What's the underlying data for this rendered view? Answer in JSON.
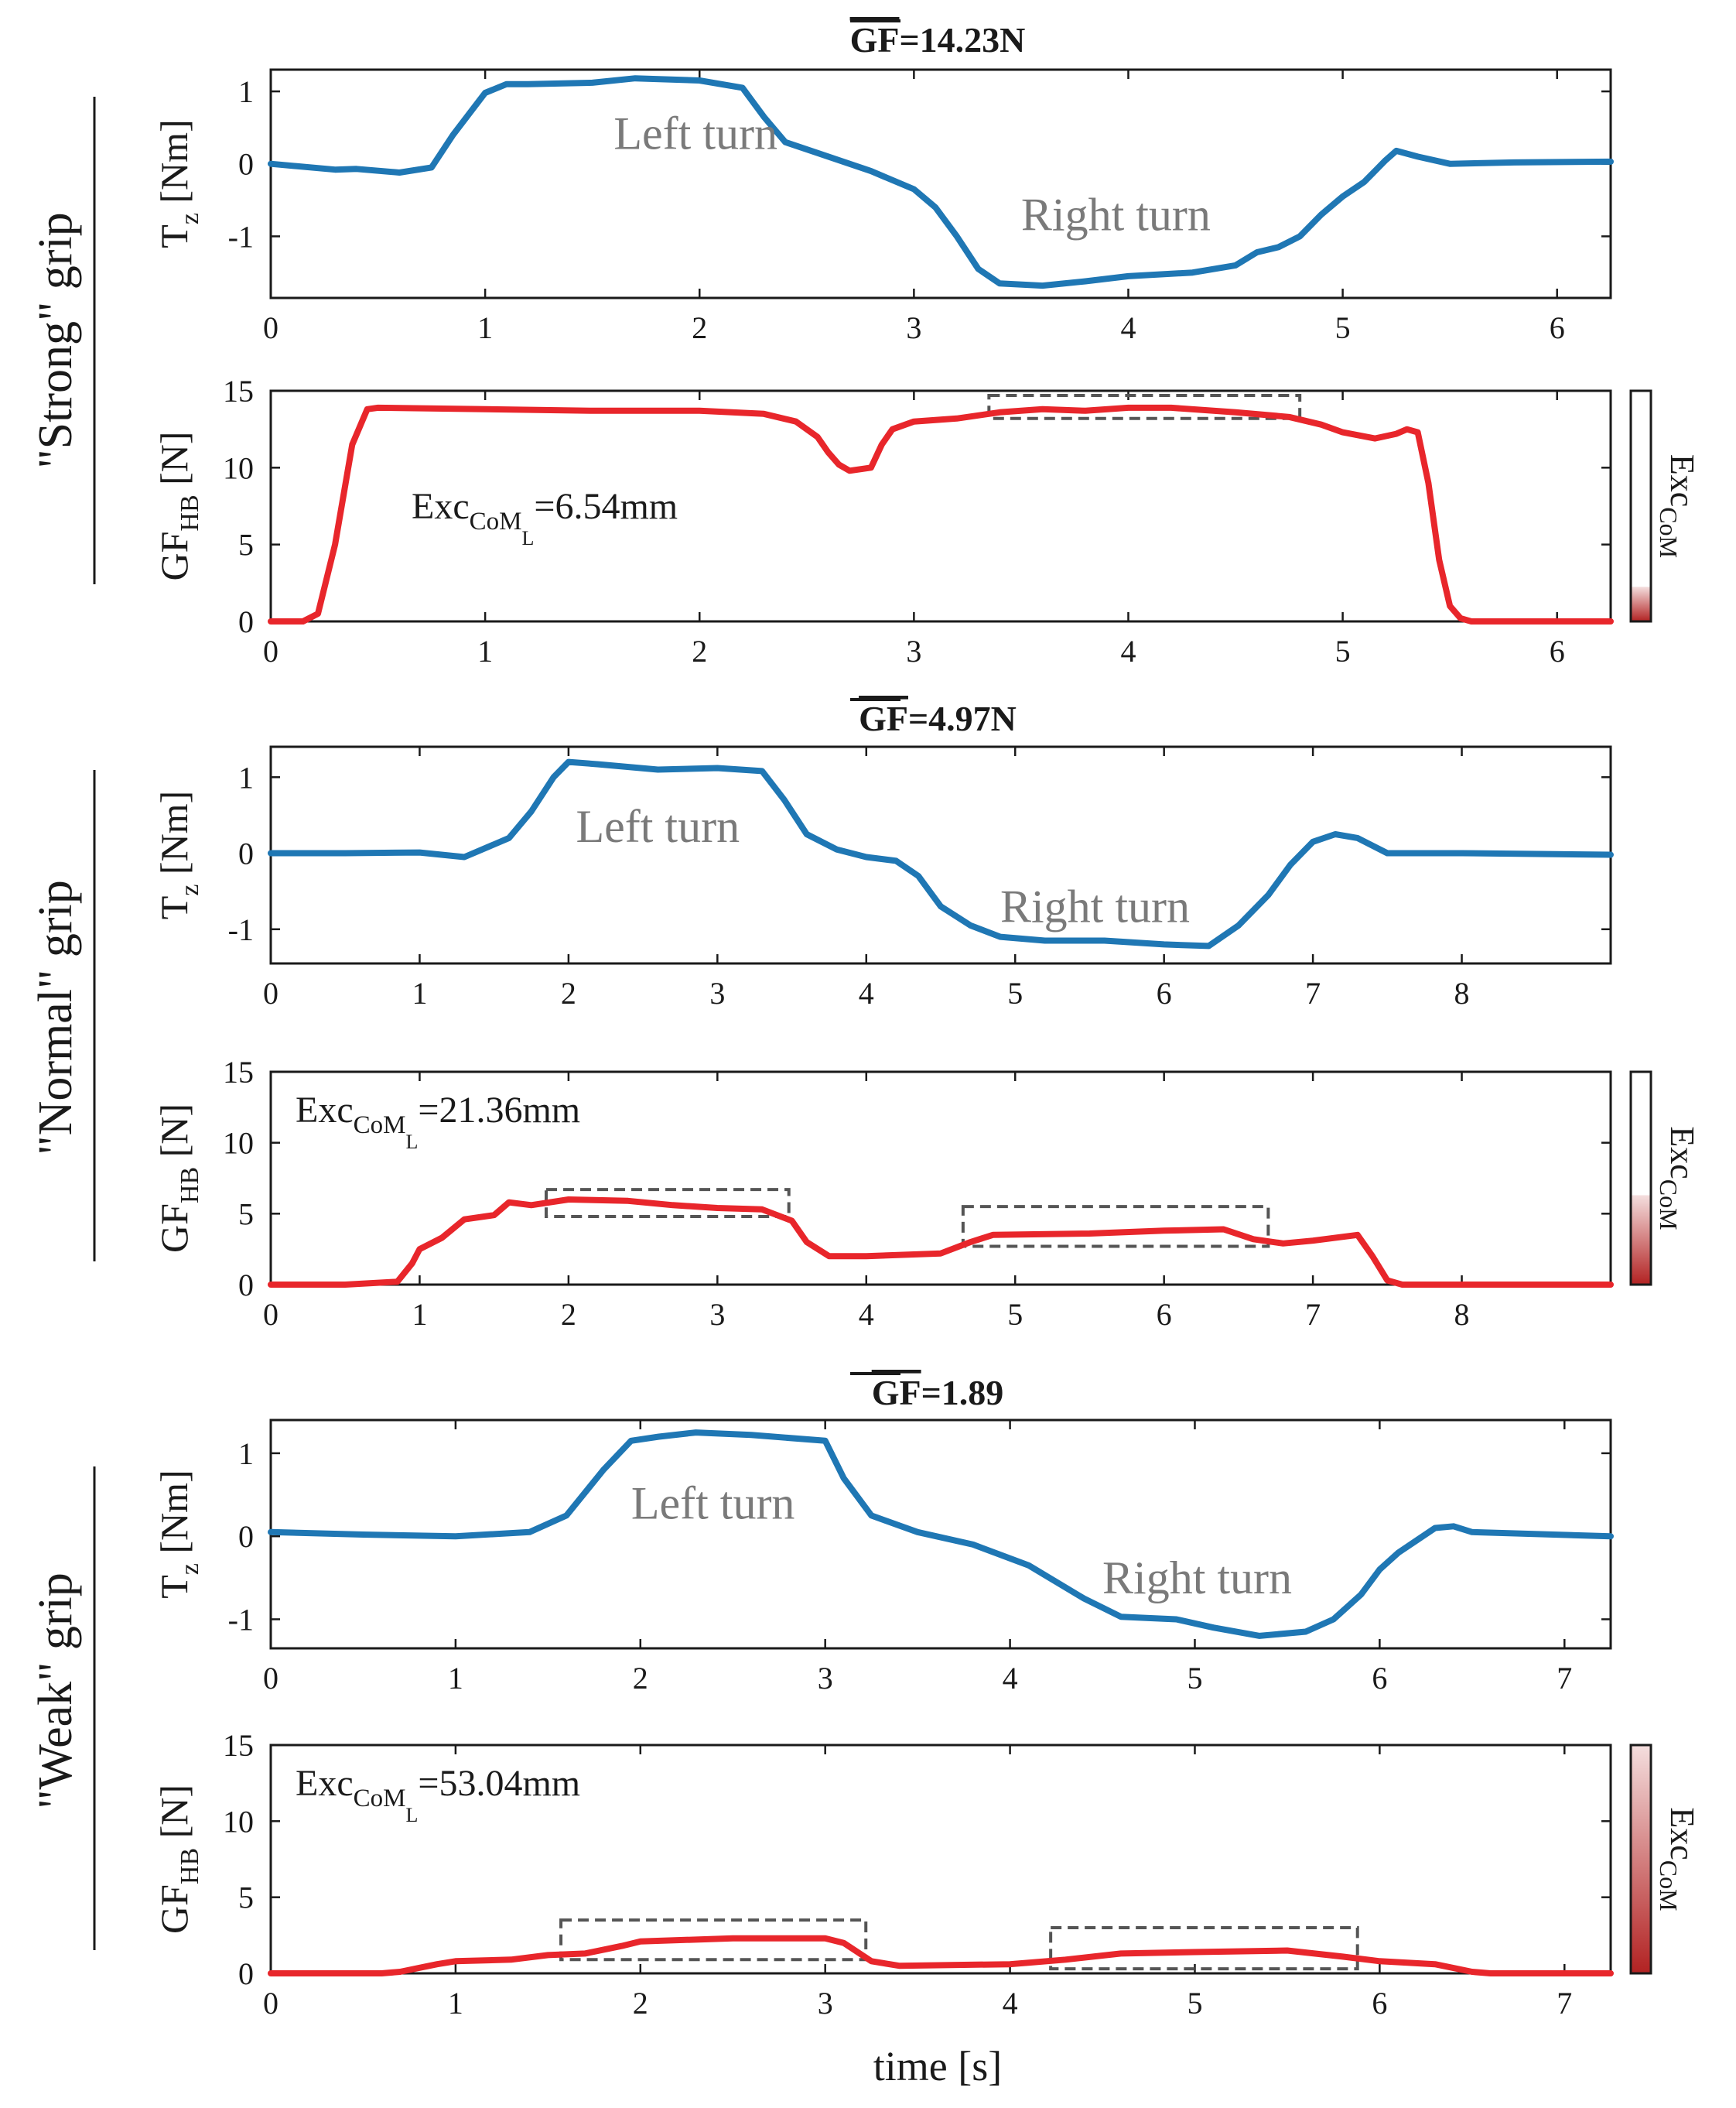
{
  "xlabel": "time [s]",
  "colors": {
    "torque": "#1f77b4",
    "grip_force": "#e8262b",
    "box": "#555555",
    "text_gray": "#7a7a7a",
    "exc_fill": "#b22222"
  },
  "chart_data": [
    {
      "id": "strong",
      "group_label": "\"Strong\" grip",
      "title_var": "GF",
      "title_value": "=14.23N",
      "exc_label": "Exc",
      "exc_sub": "CoM",
      "exc_sub2": "L",
      "exc_value": "=6.54mm",
      "exc_level": 0.15,
      "colorbar_label": "Exc",
      "colorbar_sub": "CoM",
      "torque": {
        "type": "line",
        "ylabel": "T",
        "ylabel_sub": "z",
        "ylabel_unit": " [Nm]",
        "xlim": [
          0,
          6.25
        ],
        "ylim": [
          -1.85,
          1.3
        ],
        "xticks": [
          0,
          1,
          2,
          3,
          4,
          5,
          6
        ],
        "yticks": [
          -1,
          0,
          1
        ],
        "annotations": [
          {
            "text": "Left turn",
            "x": 1.6,
            "y": 0.42
          },
          {
            "text": "Right turn",
            "x": 3.5,
            "y": -0.7
          }
        ],
        "x": [
          0,
          0.3,
          0.4,
          0.6,
          0.75,
          0.85,
          1.0,
          1.1,
          1.2,
          1.5,
          1.7,
          2.0,
          2.2,
          2.3,
          2.4,
          2.55,
          2.8,
          3.0,
          3.1,
          3.2,
          3.3,
          3.4,
          3.6,
          3.8,
          4.0,
          4.3,
          4.5,
          4.6,
          4.7,
          4.8,
          4.9,
          5.0,
          5.1,
          5.2,
          5.25,
          5.35,
          5.5,
          5.8,
          6.25
        ],
        "y": [
          0,
          -0.08,
          -0.07,
          -0.12,
          -0.05,
          0.4,
          0.98,
          1.1,
          1.1,
          1.12,
          1.18,
          1.15,
          1.05,
          0.65,
          0.3,
          0.15,
          -0.1,
          -0.35,
          -0.6,
          -1.0,
          -1.45,
          -1.65,
          -1.68,
          -1.62,
          -1.55,
          -1.5,
          -1.4,
          -1.22,
          -1.15,
          -1.0,
          -0.7,
          -0.45,
          -0.25,
          0.05,
          0.18,
          0.1,
          0.0,
          0.02,
          0.03
        ]
      },
      "grip": {
        "type": "line",
        "ylabel": "GF",
        "ylabel_sub": "HB",
        "ylabel_unit": " [N]",
        "xlim": [
          0,
          6.25
        ],
        "ylim": [
          0,
          15
        ],
        "xticks": [
          0,
          1,
          2,
          3,
          4,
          5,
          6
        ],
        "yticks": [
          0,
          5,
          10,
          15
        ],
        "boxes": [
          {
            "x0": 3.35,
            "x1": 4.8,
            "y0": 13.2,
            "y1": 14.7
          }
        ],
        "x": [
          0,
          0.15,
          0.22,
          0.3,
          0.38,
          0.45,
          0.5,
          1.0,
          1.5,
          2.0,
          2.3,
          2.45,
          2.55,
          2.6,
          2.65,
          2.7,
          2.8,
          2.85,
          2.9,
          3.0,
          3.2,
          3.4,
          3.6,
          3.8,
          4.0,
          4.2,
          4.5,
          4.75,
          4.9,
          5.0,
          5.15,
          5.25,
          5.3,
          5.35,
          5.4,
          5.45,
          5.5,
          5.55,
          5.6,
          6.25
        ],
        "y": [
          0,
          0,
          0.5,
          5.0,
          11.5,
          13.8,
          13.9,
          13.8,
          13.7,
          13.7,
          13.5,
          13.0,
          12.0,
          11.0,
          10.2,
          9.8,
          10.0,
          11.5,
          12.5,
          13.0,
          13.2,
          13.6,
          13.8,
          13.7,
          13.9,
          13.9,
          13.6,
          13.3,
          12.8,
          12.3,
          11.9,
          12.2,
          12.5,
          12.3,
          9.0,
          4.0,
          1.0,
          0.2,
          0,
          0
        ]
      }
    },
    {
      "id": "normal",
      "group_label": "\"Normal\" grip",
      "title_var": "GF",
      "title_value": "=4.97N",
      "exc_label": "Exc",
      "exc_sub": "CoM",
      "exc_sub2": "L",
      "exc_value": "=21.36mm",
      "exc_level": 0.42,
      "colorbar_label": "Exc",
      "colorbar_sub": "CoM",
      "torque": {
        "type": "line",
        "ylabel": "T",
        "ylabel_sub": "z",
        "ylabel_unit": " [Nm]",
        "xlim": [
          0,
          9.0
        ],
        "ylim": [
          -1.45,
          1.4
        ],
        "xticks": [
          0,
          1,
          2,
          3,
          4,
          5,
          6,
          7,
          8
        ],
        "yticks": [
          -1,
          0,
          1
        ],
        "annotations": [
          {
            "text": "Left turn",
            "x": 2.05,
            "y": 0.35
          },
          {
            "text": "Right turn",
            "x": 4.9,
            "y": -0.7
          }
        ],
        "x": [
          0,
          0.5,
          1.0,
          1.3,
          1.6,
          1.75,
          1.9,
          2.0,
          2.2,
          2.6,
          3.0,
          3.3,
          3.45,
          3.6,
          3.8,
          4.0,
          4.2,
          4.35,
          4.5,
          4.7,
          4.9,
          5.2,
          5.6,
          6.0,
          6.3,
          6.5,
          6.7,
          6.85,
          7.0,
          7.15,
          7.3,
          7.5,
          8.0,
          9.0
        ],
        "y": [
          0,
          0,
          0.01,
          -0.05,
          0.2,
          0.55,
          1.0,
          1.2,
          1.17,
          1.1,
          1.12,
          1.08,
          0.7,
          0.25,
          0.05,
          -0.05,
          -0.1,
          -0.3,
          -0.7,
          -0.95,
          -1.1,
          -1.15,
          -1.15,
          -1.2,
          -1.22,
          -0.95,
          -0.55,
          -0.15,
          0.15,
          0.25,
          0.2,
          0.0,
          0.0,
          -0.02
        ]
      },
      "grip": {
        "type": "line",
        "ylabel": "GF",
        "ylabel_sub": "HB",
        "ylabel_unit": " [N]",
        "xlim": [
          0,
          9.0
        ],
        "ylim": [
          0,
          15
        ],
        "xticks": [
          0,
          1,
          2,
          3,
          4,
          5,
          6,
          7,
          8
        ],
        "yticks": [
          0,
          5,
          10,
          15
        ],
        "boxes": [
          {
            "x0": 1.85,
            "x1": 3.48,
            "y0": 4.8,
            "y1": 6.7
          },
          {
            "x0": 4.65,
            "x1": 6.7,
            "y0": 2.7,
            "y1": 5.5
          }
        ],
        "x": [
          0,
          0.5,
          0.85,
          0.95,
          1.0,
          1.15,
          1.3,
          1.5,
          1.6,
          1.75,
          2.0,
          2.4,
          2.7,
          3.0,
          3.3,
          3.5,
          3.6,
          3.75,
          4.0,
          4.5,
          4.7,
          4.85,
          5.5,
          6.0,
          6.4,
          6.6,
          6.8,
          7.0,
          7.3,
          7.4,
          7.5,
          7.6,
          9.0
        ],
        "y": [
          0,
          0,
          0.2,
          1.5,
          2.5,
          3.3,
          4.6,
          4.9,
          5.8,
          5.6,
          6.0,
          5.9,
          5.6,
          5.4,
          5.3,
          4.5,
          3.0,
          2.0,
          2.0,
          2.2,
          3.0,
          3.5,
          3.6,
          3.8,
          3.9,
          3.2,
          2.9,
          3.1,
          3.5,
          2.0,
          0.3,
          0,
          0
        ]
      }
    },
    {
      "id": "weak",
      "group_label": "\"Weak\" grip",
      "title_var": "GF",
      "title_value": "=1.89",
      "exc_label": "Exc",
      "exc_sub": "CoM",
      "exc_sub2": "L",
      "exc_value": "=53.04mm",
      "exc_level": 1.0,
      "colorbar_label": "Exc",
      "colorbar_sub": "CoM",
      "torque": {
        "type": "line",
        "ylabel": "T",
        "ylabel_sub": "z",
        "ylabel_unit": " [Nm]",
        "xlim": [
          0,
          7.25
        ],
        "ylim": [
          -1.35,
          1.4
        ],
        "xticks": [
          0,
          1,
          2,
          3,
          4,
          5,
          6,
          7
        ],
        "yticks": [
          -1,
          0,
          1
        ],
        "annotations": [
          {
            "text": "Left turn",
            "x": 1.95,
            "y": 0.4
          },
          {
            "text": "Right turn",
            "x": 4.5,
            "y": -0.5
          }
        ],
        "x": [
          0,
          0.5,
          1.0,
          1.4,
          1.6,
          1.8,
          1.95,
          2.1,
          2.3,
          2.6,
          3.0,
          3.1,
          3.25,
          3.5,
          3.8,
          4.1,
          4.4,
          4.6,
          4.9,
          5.1,
          5.35,
          5.6,
          5.75,
          5.9,
          6.0,
          6.1,
          6.2,
          6.3,
          6.4,
          6.5,
          7.25
        ],
        "y": [
          0.05,
          0.02,
          0.0,
          0.05,
          0.25,
          0.8,
          1.15,
          1.2,
          1.25,
          1.22,
          1.15,
          0.7,
          0.25,
          0.05,
          -0.1,
          -0.35,
          -0.75,
          -0.97,
          -1.0,
          -1.1,
          -1.2,
          -1.15,
          -1.0,
          -0.7,
          -0.4,
          -0.2,
          -0.05,
          0.1,
          0.12,
          0.05,
          0.0
        ]
      },
      "grip": {
        "type": "line",
        "ylabel": "GF",
        "ylabel_sub": "HB",
        "ylabel_unit": " [N]",
        "xlim": [
          0,
          7.25
        ],
        "ylim": [
          0,
          15
        ],
        "xticks": [
          0,
          1,
          2,
          3,
          4,
          5,
          6,
          7
        ],
        "yticks": [
          0,
          5,
          10,
          15
        ],
        "boxes": [
          {
            "x0": 1.57,
            "x1": 3.22,
            "y0": 0.9,
            "y1": 3.5
          },
          {
            "x0": 4.22,
            "x1": 5.88,
            "y0": 0.3,
            "y1": 3.0
          }
        ],
        "x": [
          0,
          0.6,
          0.7,
          0.9,
          1.0,
          1.3,
          1.5,
          1.7,
          1.9,
          2.0,
          2.5,
          3.0,
          3.1,
          3.25,
          3.4,
          4.0,
          4.3,
          4.6,
          5.0,
          5.5,
          5.8,
          6.0,
          6.3,
          6.5,
          6.6,
          7.25
        ],
        "y": [
          0,
          0,
          0.1,
          0.6,
          0.8,
          0.9,
          1.2,
          1.3,
          1.8,
          2.1,
          2.3,
          2.3,
          2.0,
          0.8,
          0.5,
          0.6,
          0.9,
          1.3,
          1.4,
          1.5,
          1.1,
          0.8,
          0.6,
          0.1,
          0,
          0
        ]
      }
    }
  ]
}
